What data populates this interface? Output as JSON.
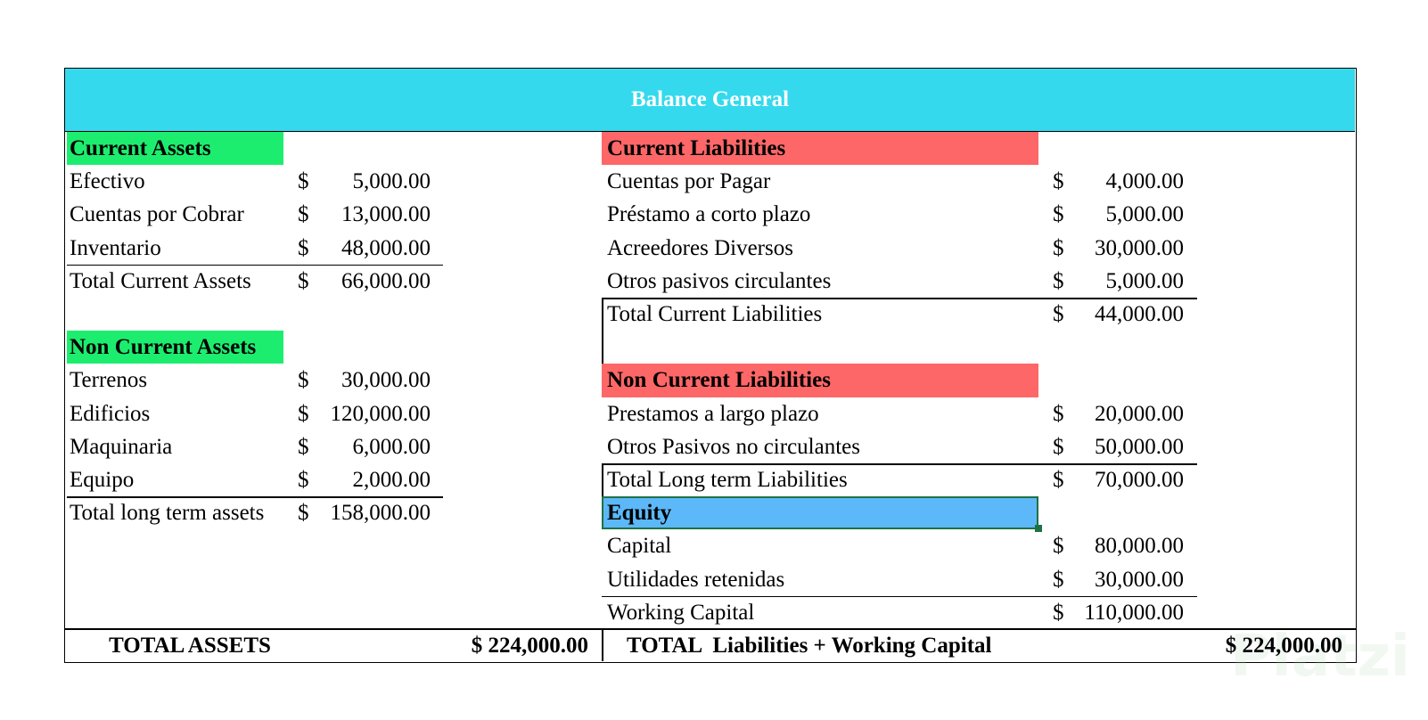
{
  "title": "Balance General",
  "left": {
    "sections": [
      {
        "heading": "Current Assets",
        "rows": [
          {
            "label": "Efectivo",
            "currency": "$",
            "amount": "5,000.00"
          },
          {
            "label": "Cuentas por Cobrar",
            "currency": "$",
            "amount": "13,000.00"
          },
          {
            "label": "Inventario",
            "currency": "$",
            "amount": "48,000.00"
          }
        ],
        "total": {
          "label": "Total Current Assets",
          "currency": "$",
          "amount": "66,000.00"
        }
      },
      {
        "heading": "Non Current Assets",
        "rows": [
          {
            "label": "Terrenos",
            "currency": "$",
            "amount": "30,000.00"
          },
          {
            "label": "Edificios",
            "currency": "$",
            "amount": "120,000.00"
          },
          {
            "label": "Maquinaria",
            "currency": "$",
            "amount": "6,000.00"
          },
          {
            "label": "Equipo",
            "currency": "$",
            "amount": "2,000.00"
          }
        ],
        "total": {
          "label": "Total long term assets",
          "currency": "$",
          "amount": "158,000.00"
        }
      }
    ],
    "grand_total": {
      "label": "TOTAL ASSETS",
      "amount": "$ 224,000.00"
    }
  },
  "right": {
    "sections": [
      {
        "heading": "Current Liabilities",
        "rows": [
          {
            "label": "Cuentas por Pagar",
            "currency": "$",
            "amount": "4,000.00"
          },
          {
            "label": "Préstamo a corto plazo",
            "currency": "$",
            "amount": "5,000.00"
          },
          {
            "label": "Acreedores Diversos",
            "currency": "$",
            "amount": "30,000.00"
          },
          {
            "label": "Otros pasivos circulantes",
            "currency": "$",
            "amount": "5,000.00"
          }
        ],
        "total": {
          "label": "Total Current Liabilities",
          "currency": "$",
          "amount": "44,000.00"
        }
      },
      {
        "heading": "Non Current Liabilities",
        "rows": [
          {
            "label": "Prestamos a largo plazo",
            "currency": "$",
            "amount": "20,000.00"
          },
          {
            "label": "Otros Pasivos no circulantes",
            "currency": "$",
            "amount": "50,000.00"
          }
        ],
        "total": {
          "label": "Total Long term Liabilities",
          "currency": "$",
          "amount": "70,000.00"
        }
      },
      {
        "heading": "Equity",
        "rows": [
          {
            "label": "Capital",
            "currency": "$",
            "amount": "80,000.00"
          },
          {
            "label": "Utilidades retenidas",
            "currency": "$",
            "amount": "30,000.00"
          }
        ],
        "total": {
          "label": "Working Capital",
          "currency": "$",
          "amount": "110,000.00"
        }
      }
    ],
    "grand_total": {
      "label": "TOTAL  Liabilities + Working Capital",
      "amount": "$ 224,000.00"
    }
  },
  "watermark": "Platzi"
}
